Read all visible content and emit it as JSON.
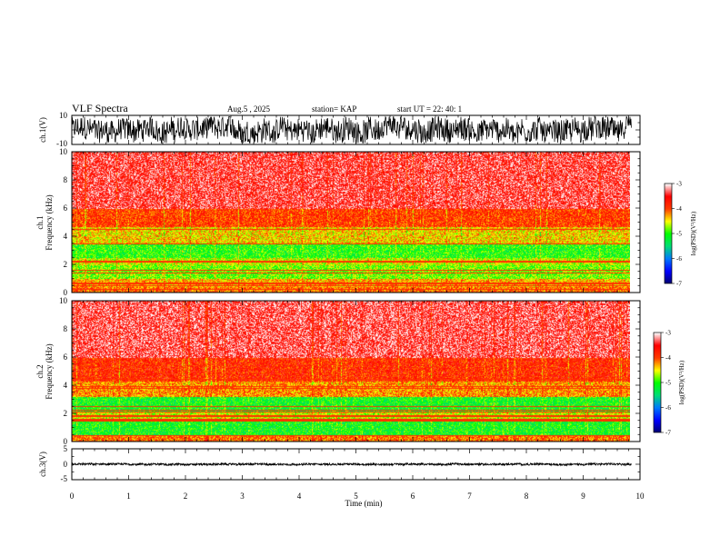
{
  "header": {
    "title": "VLF Spectra",
    "date": "Aug.5  , 2025",
    "station": "station= KAP",
    "start": "start  UT  =   22: 40: 1"
  },
  "colors": {
    "background": "#ffffff",
    "axis": "#000000",
    "waveform": "#000000",
    "spectrogram_scale": [
      "#00007f",
      "#0000ff",
      "#0080ff",
      "#00ff00",
      "#ffff00",
      "#ff0000",
      "#ffffff"
    ]
  },
  "chart_data": [
    {
      "type": "line",
      "name": "ch1-waveform",
      "ylabel": "ch.1(V)",
      "ylim": [
        -10,
        10
      ],
      "ytick_labels": [
        "10",
        "-10"
      ],
      "xlim": [
        0,
        10
      ],
      "series": [
        {
          "name": "ch.1",
          "description_note": "dense oscillating voltage trace",
          "amplitude_range": [
            -9,
            9
          ],
          "x_end": 9.85
        }
      ]
    },
    {
      "type": "heatmap",
      "name": "ch1-spectrogram",
      "ylabel": "ch.1\nFrequency  (kHz)",
      "ylim": [
        0,
        10
      ],
      "yticks": [
        0,
        2,
        4,
        6,
        8,
        10
      ],
      "ytick_labels": [
        "0",
        "2",
        "4",
        "6",
        "8",
        "10"
      ],
      "xlim": [
        0,
        10
      ],
      "x_end": 9.85,
      "colorbar": {
        "label": "log(PSD)(V²/Hz)",
        "range": [
          -7,
          -3
        ],
        "tick_labels": [
          "-3",
          "-4",
          "-5",
          "-6",
          "-7"
        ]
      },
      "bands": [
        {
          "from": 0.0,
          "to": 0.4,
          "level": -4.1
        },
        {
          "from": 0.4,
          "to": 1.0,
          "level": -4.3
        },
        {
          "from": 1.0,
          "to": 2.0,
          "level": -4.8
        },
        {
          "from": 2.0,
          "to": 2.5,
          "level": -4.6
        },
        {
          "from": 2.5,
          "to": 3.5,
          "level": -5.0
        },
        {
          "from": 3.5,
          "to": 4.7,
          "level": -4.4
        },
        {
          "from": 4.7,
          "to": 6.0,
          "level": -3.9
        },
        {
          "from": 6.0,
          "to": 10.0,
          "level": -3.4
        }
      ]
    },
    {
      "type": "heatmap",
      "name": "ch2-spectrogram",
      "ylabel": "ch.2\nFrequency  (kHz)",
      "ylim": [
        0,
        10
      ],
      "yticks": [
        0,
        2,
        4,
        6,
        8,
        10
      ],
      "ytick_labels": [
        "0",
        "2",
        "4",
        "6",
        "8",
        "10"
      ],
      "xlim": [
        0,
        10
      ],
      "x_end": 9.85,
      "colorbar": {
        "label": "log(PSD)(V²/Hz)",
        "range": [
          -7,
          -3
        ],
        "tick_labels": [
          "-3",
          "-4",
          "-5",
          "-6",
          "-7"
        ]
      },
      "bands": [
        {
          "from": 0.0,
          "to": 0.5,
          "level": -4.1
        },
        {
          "from": 0.5,
          "to": 1.6,
          "level": -5.1
        },
        {
          "from": 1.6,
          "to": 2.1,
          "level": -4.6
        },
        {
          "from": 2.1,
          "to": 3.2,
          "level": -5.1
        },
        {
          "from": 3.2,
          "to": 4.3,
          "level": -4.2
        },
        {
          "from": 4.3,
          "to": 6.0,
          "level": -3.8
        },
        {
          "from": 6.0,
          "to": 10.0,
          "level": -3.35
        }
      ]
    },
    {
      "type": "line",
      "name": "ch3-waveform",
      "ylabel": "ch.3(V)",
      "ylim": [
        -5,
        5
      ],
      "ytick_labels": [
        "5",
        "0",
        "-5"
      ],
      "xlim": [
        0,
        10
      ],
      "series": [
        {
          "name": "ch.3",
          "description_note": "flat thick noise band",
          "amplitude_range": [
            -0.35,
            0.35
          ],
          "x_end": 9.85
        }
      ]
    }
  ],
  "xaxis": {
    "label": "Time  (min)",
    "range": [
      0,
      10
    ],
    "tick_labels": [
      "0",
      "1",
      "2",
      "3",
      "4",
      "5",
      "6",
      "7",
      "8",
      "9",
      "10"
    ]
  }
}
